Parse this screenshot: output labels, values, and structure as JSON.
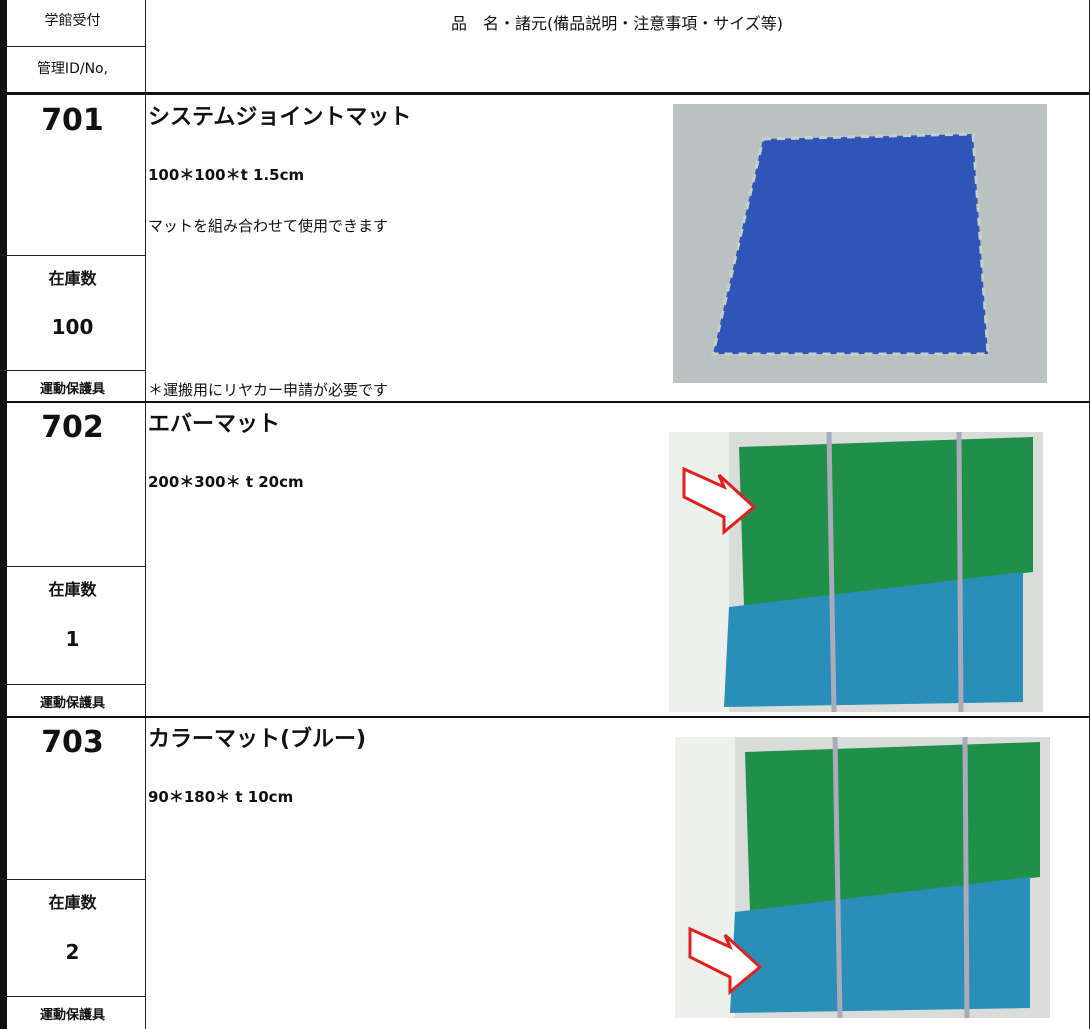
{
  "header": {
    "reception": "学館受付",
    "id_label": "管理ID/No,",
    "title": "品　名・諸元(備品説明・注意事項・サイズ等)"
  },
  "items": [
    {
      "id": "701",
      "name": "システムジョイントマット",
      "size": "100＊100＊t 1.5cm",
      "description": "マットを組み合わせて使用できます",
      "note": "＊運搬用にリヤカー申請が必要です",
      "stock_label": "在庫数",
      "stock": "100",
      "category": "運動保護具"
    },
    {
      "id": "702",
      "name": "エバーマット",
      "size": "200＊300＊ t 20cm",
      "stock_label": "在庫数",
      "stock": "1",
      "category": "運動保護具"
    },
    {
      "id": "703",
      "name": "カラーマット(ブルー)",
      "size": "90＊180＊ t 10cm",
      "stock_label": "在庫数",
      "stock": "2",
      "category": "運動保護具"
    }
  ]
}
